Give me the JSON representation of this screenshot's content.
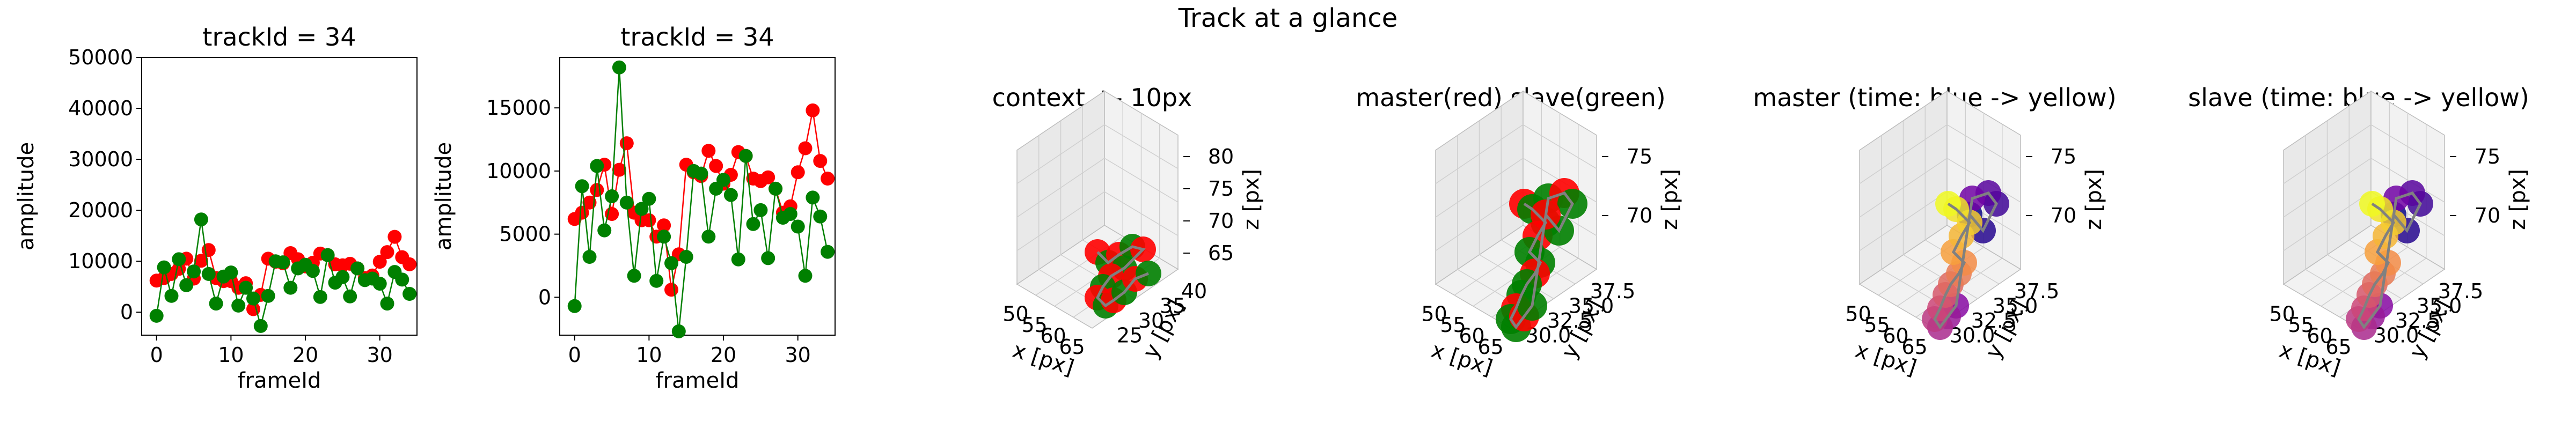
{
  "figure": {
    "title": "Track at a glance"
  },
  "colors": {
    "master": "#ff0000",
    "slave": "#008000",
    "path": "#808080"
  },
  "chart_data": [
    {
      "type": "line",
      "title": "trackId = 34",
      "xlabel": "frameId",
      "ylabel": "amplitude",
      "xlim": [
        -2,
        35
      ],
      "ylim": [
        -4500,
        50000
      ],
      "xticks": [
        0,
        10,
        20,
        30
      ],
      "yticks": [
        0,
        10000,
        20000,
        30000,
        40000,
        50000
      ],
      "x": [
        0,
        1,
        2,
        3,
        4,
        5,
        6,
        7,
        8,
        9,
        10,
        11,
        12,
        13,
        14,
        15,
        16,
        17,
        18,
        19,
        20,
        21,
        22,
        23,
        24,
        25,
        26,
        27,
        28,
        29,
        30,
        31,
        32,
        33,
        34
      ],
      "series": [
        {
          "color": "red",
          "values": [
            6200,
            6700,
            7500,
            8500,
            10500,
            6600,
            10100,
            12200,
            6700,
            6100,
            6100,
            4800,
            5700,
            600,
            3400,
            10500,
            9900,
            9600,
            11600,
            10400,
            9000,
            9700,
            11500,
            11200,
            9400,
            9200,
            9500,
            8600,
            6700,
            7200,
            9900,
            11800,
            14800,
            10800,
            9400
          ]
        },
        {
          "color": "green",
          "values": [
            -700,
            8800,
            3200,
            10400,
            5300,
            8000,
            18200,
            7500,
            1700,
            7000,
            7800,
            1300,
            4800,
            2700,
            -2700,
            3200,
            10000,
            9800,
            4800,
            8600,
            9300,
            8100,
            3000,
            11200,
            5800,
            6900,
            3100,
            8600,
            6300,
            6600,
            5600,
            1700,
            7900,
            6400,
            3600
          ]
        }
      ]
    },
    {
      "type": "line",
      "title": "trackId = 34",
      "xlabel": "frameId",
      "ylabel": "amplitude",
      "xlim": [
        -2,
        35
      ],
      "ylim": [
        -3000,
        19000
      ],
      "xticks": [
        0,
        10,
        20,
        30
      ],
      "yticks": [
        0,
        5000,
        10000,
        15000
      ],
      "x": [
        0,
        1,
        2,
        3,
        4,
        5,
        6,
        7,
        8,
        9,
        10,
        11,
        12,
        13,
        14,
        15,
        16,
        17,
        18,
        19,
        20,
        21,
        22,
        23,
        24,
        25,
        26,
        27,
        28,
        29,
        30,
        31,
        32,
        33,
        34
      ],
      "series": [
        {
          "color": "red",
          "values": [
            6200,
            6700,
            7500,
            8500,
            10500,
            6600,
            10100,
            12200,
            6700,
            6100,
            6100,
            4800,
            5700,
            600,
            3400,
            10500,
            9900,
            9600,
            11600,
            10400,
            9000,
            9700,
            11500,
            11200,
            9400,
            9200,
            9500,
            8600,
            6700,
            7200,
            9900,
            11800,
            14800,
            10800,
            9400
          ]
        },
        {
          "color": "green",
          "values": [
            -700,
            8800,
            3200,
            10400,
            5300,
            8000,
            18200,
            7500,
            1700,
            7000,
            7800,
            1300,
            4800,
            2700,
            -2700,
            3200,
            10000,
            9800,
            4800,
            8600,
            9300,
            8100,
            3000,
            11200,
            5800,
            6900,
            3100,
            8600,
            6300,
            6600,
            5600,
            1700,
            7900,
            6400,
            3600
          ]
        }
      ]
    },
    {
      "type": "scatter",
      "title": "context +- 10px",
      "xlabel": "x [px]",
      "ylabel": "y [px]",
      "zlabel": "z [px]",
      "xticks": [
        "50",
        "55",
        "60",
        "65"
      ],
      "yticks": [
        "25",
        "30",
        "35",
        "40"
      ],
      "zticks": [
        "65",
        "70",
        "75",
        "80"
      ]
    },
    {
      "type": "scatter",
      "title": "master(red) slave(green)",
      "xlabel": "x [px]",
      "ylabel": "y [px]",
      "zlabel": "z [px]",
      "xticks": [
        "50",
        "55",
        "60",
        "65"
      ],
      "yticks": [
        "30.0",
        "32.5",
        "35.0",
        "37.5"
      ],
      "zticks": [
        "70",
        "75"
      ]
    },
    {
      "type": "scatter",
      "title": "master (time: blue -> yellow)",
      "xlabel": "x [px]",
      "ylabel": "y [px]",
      "zlabel": "z [px]",
      "xticks": [
        "50",
        "55",
        "60",
        "65"
      ],
      "yticks": [
        "30.0",
        "32.5",
        "35.0",
        "37.5"
      ],
      "zticks": [
        "70",
        "75"
      ]
    },
    {
      "type": "scatter",
      "title": "slave (time: blue -> yellow)",
      "xlabel": "x [px]",
      "ylabel": "y [px]",
      "zlabel": "z [px]",
      "xticks": [
        "50",
        "55",
        "60",
        "65"
      ],
      "yticks": [
        "30.0",
        "32.5",
        "35.0",
        "37.5"
      ],
      "zticks": [
        "70",
        "75"
      ]
    }
  ]
}
